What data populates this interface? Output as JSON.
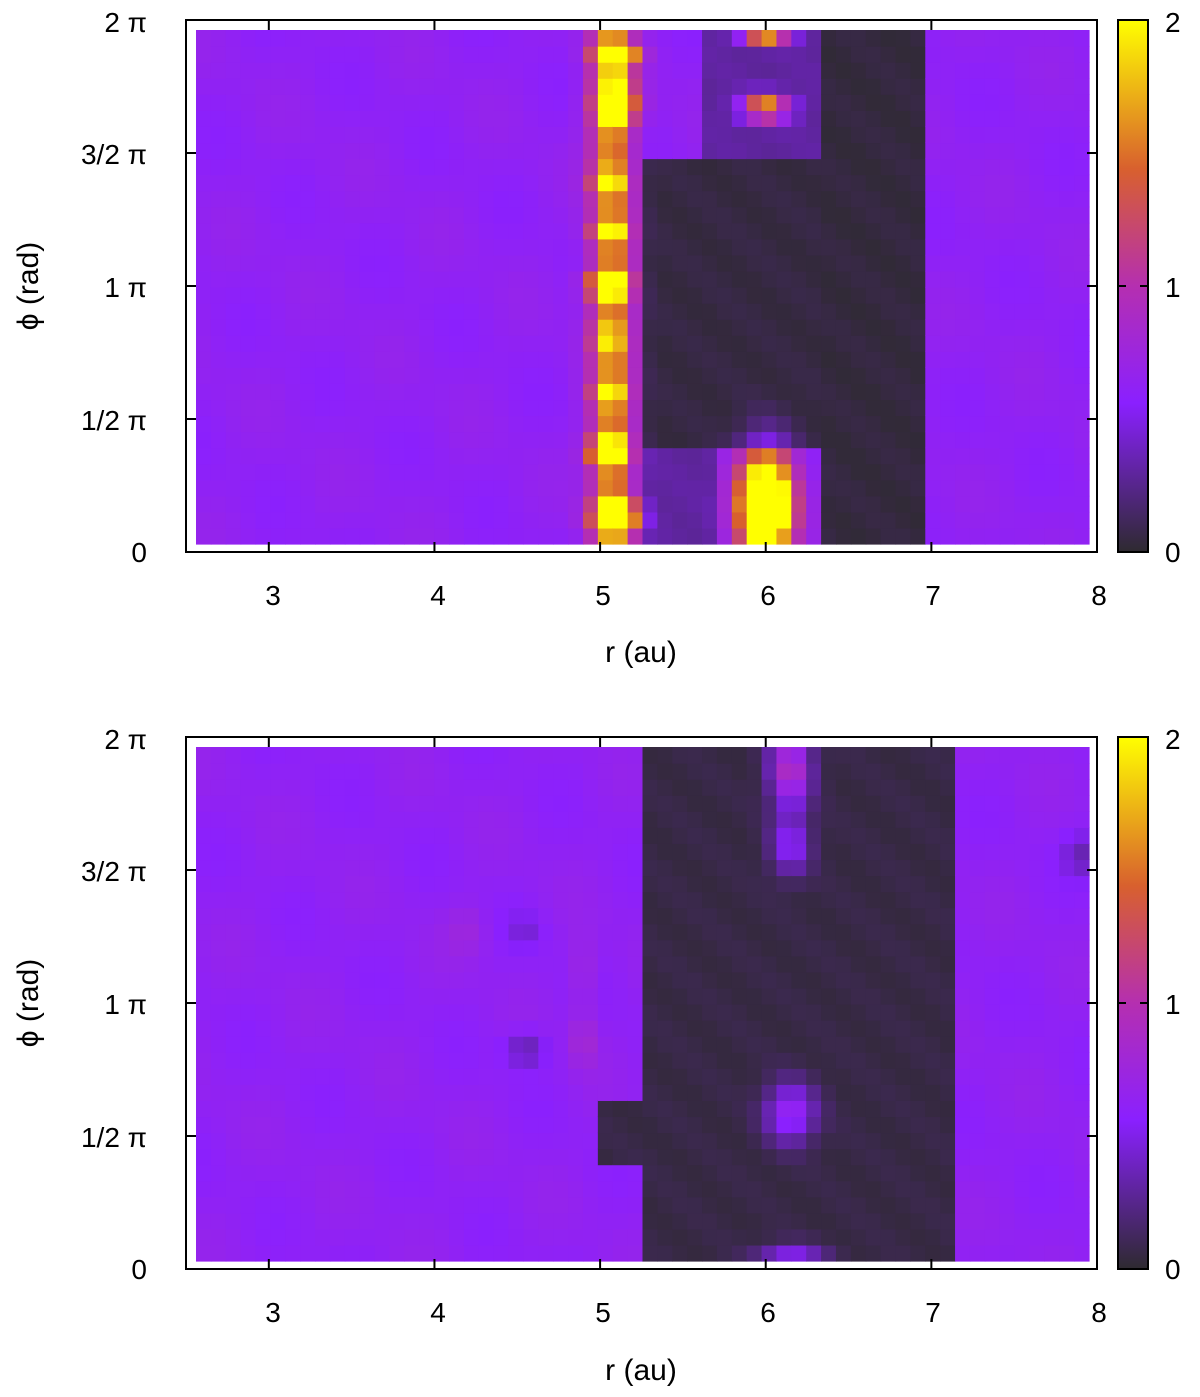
{
  "chart_data": [
    {
      "type": "heatmap",
      "title": "",
      "xlabel": "r (au)",
      "ylabel": "ϕ (rad)",
      "xlim": [
        2.5,
        8.0
      ],
      "ylim": [
        0,
        6.2832
      ],
      "x_ticks": [
        3,
        4,
        5,
        6,
        7,
        8
      ],
      "x_tick_labels": [
        "3",
        "4",
        "5",
        "6",
        "7",
        "8"
      ],
      "y_ticks": [
        0,
        1.5708,
        3.1416,
        4.7124,
        6.2832
      ],
      "y_tick_labels": [
        "0",
        "1/2 π",
        "1 π",
        "3/2 π",
        "2 π"
      ],
      "colorbar": {
        "range": [
          0,
          2
        ],
        "ticks": [
          0,
          1,
          2
        ],
        "tick_labels": [
          "0",
          "1",
          "2"
        ]
      },
      "colormap": [
        "#2e2a30",
        "#8a20ff",
        "#b52fb0",
        "#d8602e",
        "#ffff00"
      ],
      "grid": false,
      "legend": "none",
      "field": {
        "background": 0.62,
        "features": [
          {
            "kind": "band",
            "r": 5.07,
            "width": 0.12,
            "amp": 1.05
          },
          {
            "kind": "blob",
            "r": 5.1,
            "phi": 0.05,
            "sr": 0.12,
            "sp": 0.1,
            "amp": 0.9
          },
          {
            "kind": "blob",
            "r": 5.1,
            "phi": 0.45,
            "sr": 0.14,
            "sp": 0.13,
            "amp": 1.6
          },
          {
            "kind": "blob",
            "r": 5.05,
            "phi": 1.2,
            "sr": 0.11,
            "sp": 0.14,
            "amp": 1.6
          },
          {
            "kind": "blob",
            "r": 5.05,
            "phi": 1.85,
            "sr": 0.1,
            "sp": 0.1,
            "amp": 0.7
          },
          {
            "kind": "blob",
            "r": 5.05,
            "phi": 2.55,
            "sr": 0.1,
            "sp": 0.1,
            "amp": 0.7
          },
          {
            "kind": "blob",
            "r": 5.05,
            "phi": 3.15,
            "sr": 0.12,
            "sp": 0.12,
            "amp": 1.6
          },
          {
            "kind": "blob",
            "r": 5.05,
            "phi": 3.8,
            "sr": 0.1,
            "sp": 0.1,
            "amp": 0.75
          },
          {
            "kind": "blob",
            "r": 5.05,
            "phi": 4.4,
            "sr": 0.1,
            "sp": 0.12,
            "amp": 0.7
          },
          {
            "kind": "blob",
            "r": 5.1,
            "phi": 5.3,
            "sr": 0.12,
            "sp": 0.22,
            "amp": 1.2
          },
          {
            "kind": "blob",
            "r": 5.1,
            "phi": 5.85,
            "sr": 0.12,
            "sp": 0.12,
            "amp": 1.6
          },
          {
            "kind": "rect",
            "r0": 5.3,
            "r1": 6.3,
            "p0": 1.3,
            "p1": 4.7,
            "set": 0.05
          },
          {
            "kind": "rect",
            "r0": 6.3,
            "r1": 6.95,
            "p0": 0.0,
            "p1": 6.2832,
            "set": 0.04
          },
          {
            "kind": "rect",
            "r0": 5.3,
            "r1": 5.7,
            "p0": 0.0,
            "p1": 1.3,
            "set": 0.3
          },
          {
            "kind": "rect",
            "r0": 5.6,
            "r1": 6.3,
            "p0": 4.7,
            "p1": 6.2832,
            "set": 0.3
          },
          {
            "kind": "blob",
            "r": 6.0,
            "phi": 0.55,
            "sr": 0.16,
            "sp": 0.6,
            "amp": 2.4
          },
          {
            "kind": "blob",
            "r": 6.0,
            "phi": 5.25,
            "sr": 0.14,
            "sp": 0.15,
            "amp": 1.5
          },
          {
            "kind": "blob",
            "r": 6.0,
            "phi": 6.15,
            "sr": 0.14,
            "sp": 0.12,
            "amp": 2.0
          }
        ]
      }
    },
    {
      "type": "heatmap",
      "title": "",
      "xlabel": "r (au)",
      "ylabel": "ϕ (rad)",
      "xlim": [
        2.5,
        8.0
      ],
      "ylim": [
        0,
        6.2832
      ],
      "x_ticks": [
        3,
        4,
        5,
        6,
        7,
        8
      ],
      "x_tick_labels": [
        "3",
        "4",
        "5",
        "6",
        "7",
        "8"
      ],
      "y_ticks": [
        0,
        1.5708,
        3.1416,
        4.7124,
        6.2832
      ],
      "y_tick_labels": [
        "0",
        "1/2 π",
        "1 π",
        "3/2 π",
        "2 π"
      ],
      "colorbar": {
        "range": [
          0,
          2
        ],
        "ticks": [
          0,
          1,
          2
        ],
        "tick_labels": [
          "0",
          "1",
          "2"
        ]
      },
      "colormap": [
        "#2e2a30",
        "#8a20ff",
        "#b52fb0",
        "#d8602e",
        "#ffff00"
      ],
      "grid": false,
      "legend": "none",
      "field": {
        "background": 0.62,
        "features": [
          {
            "kind": "rect",
            "r0": 5.25,
            "r1": 7.15,
            "p0": 0.0,
            "p1": 6.2832,
            "set": 0.06
          },
          {
            "kind": "rect",
            "r0": 5.0,
            "r1": 5.3,
            "p0": 1.3,
            "p1": 2.0,
            "set": 0.06
          },
          {
            "kind": "blob",
            "r": 6.15,
            "phi": 5.9,
            "sr": 0.12,
            "sp": 0.45,
            "amp": 0.9
          },
          {
            "kind": "blob",
            "r": 6.15,
            "phi": 5.0,
            "sr": 0.12,
            "sp": 0.35,
            "amp": 0.5
          },
          {
            "kind": "blob",
            "r": 6.15,
            "phi": 1.85,
            "sr": 0.15,
            "sp": 0.35,
            "amp": 0.65
          },
          {
            "kind": "blob",
            "r": 6.15,
            "phi": 0.2,
            "sr": 0.2,
            "sp": 0.12,
            "amp": 0.45
          },
          {
            "kind": "blob",
            "r": 4.9,
            "phi": 3.5,
            "sr": 0.08,
            "sp": 0.45,
            "amp": 0.15
          },
          {
            "kind": "blob",
            "r": 4.9,
            "phi": 2.7,
            "sr": 0.08,
            "sp": 0.3,
            "amp": 0.2
          },
          {
            "kind": "blob",
            "r": 4.2,
            "phi": 4.0,
            "sr": 0.12,
            "sp": 0.3,
            "amp": 0.12
          },
          {
            "kind": "blob",
            "r": 4.55,
            "phi": 2.6,
            "sr": 0.12,
            "sp": 0.2,
            "amp": -0.3
          },
          {
            "kind": "blob",
            "r": 4.55,
            "phi": 4.0,
            "sr": 0.1,
            "sp": 0.2,
            "amp": -0.15
          },
          {
            "kind": "blob",
            "r": 7.9,
            "phi": 4.9,
            "sr": 0.1,
            "sp": 0.25,
            "amp": -0.25
          }
        ]
      }
    }
  ]
}
